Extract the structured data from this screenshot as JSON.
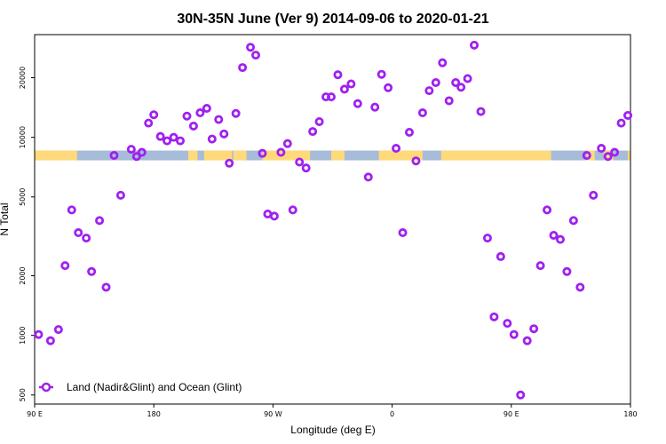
{
  "chart_data": {
    "type": "scatter",
    "title": "30N-35N June (Ver 9)   2014-09-06 to 2020-01-21",
    "xlabel": "Longitude (deg E)",
    "ylabel": "N Total",
    "x_domain": [
      90,
      540
    ],
    "xlim": [
      90,
      540
    ],
    "ylim_log": [
      450,
      33000
    ],
    "x_ticks": [
      {
        "value": 90,
        "label": "90 E"
      },
      {
        "value": 180,
        "label": "180"
      },
      {
        "value": 270,
        "label": "90 W"
      },
      {
        "value": 360,
        "label": "0"
      },
      {
        "value": 450,
        "label": "90 E"
      },
      {
        "value": 540,
        "label": "180"
      }
    ],
    "y_ticks": [
      {
        "value": 500,
        "label": "500"
      },
      {
        "value": 1000,
        "label": "1000"
      },
      {
        "value": 2000,
        "label": "2000"
      },
      {
        "value": 5000,
        "label": "5000"
      },
      {
        "value": 10000,
        "label": "10000"
      },
      {
        "value": 20000,
        "label": "20000"
      }
    ],
    "land_ocean_band": {
      "y_center": 8100,
      "land_color": "#FFD97A",
      "ocean_color": "#A7BCD9",
      "land_segments": [
        [
          90,
          122
        ],
        [
          206,
          213
        ],
        [
          218,
          239
        ],
        [
          240,
          250
        ],
        [
          262,
          298
        ],
        [
          314,
          324
        ],
        [
          350,
          383
        ],
        [
          397,
          480
        ],
        [
          507,
          513
        ],
        [
          520,
          527
        ],
        [
          538,
          540
        ]
      ]
    },
    "series": [
      {
        "name": "Land (Nadir&Glint) and Ocean (Glint)",
        "color": "#A020F0",
        "marker": "open-circle",
        "points": [
          [
            93,
            1010
          ],
          [
            102,
            940
          ],
          [
            108,
            1070
          ],
          [
            113,
            2250
          ],
          [
            118,
            4300
          ],
          [
            123,
            3300
          ],
          [
            129,
            3100
          ],
          [
            133,
            2100
          ],
          [
            139,
            3800
          ],
          [
            144,
            1750
          ],
          [
            150,
            8100
          ],
          [
            155,
            5100
          ],
          [
            163,
            8700
          ],
          [
            167,
            8000
          ],
          [
            171,
            8400
          ],
          [
            176,
            11800
          ],
          [
            180,
            13000
          ],
          [
            185,
            10100
          ],
          [
            190,
            9600
          ],
          [
            195,
            10000
          ],
          [
            200,
            9600
          ],
          [
            205,
            12800
          ],
          [
            210,
            11400
          ],
          [
            215,
            13300
          ],
          [
            220,
            14000
          ],
          [
            224,
            9800
          ],
          [
            229,
            12300
          ],
          [
            233,
            10400
          ],
          [
            237,
            7400
          ],
          [
            242,
            13200
          ],
          [
            247,
            22500
          ],
          [
            253,
            28500
          ],
          [
            257,
            26000
          ],
          [
            262,
            8300
          ],
          [
            266,
            4100
          ],
          [
            271,
            4000
          ],
          [
            276,
            8400
          ],
          [
            281,
            9300
          ],
          [
            285,
            4300
          ],
          [
            290,
            7500
          ],
          [
            295,
            7000
          ],
          [
            300,
            10700
          ],
          [
            305,
            12000
          ],
          [
            310,
            16000
          ],
          [
            314,
            16000
          ],
          [
            319,
            20700
          ],
          [
            324,
            17500
          ],
          [
            329,
            18600
          ],
          [
            334,
            14800
          ],
          [
            342,
            6300
          ],
          [
            347,
            14200
          ],
          [
            352,
            20800
          ],
          [
            357,
            17800
          ],
          [
            363,
            8800
          ],
          [
            368,
            3300
          ],
          [
            373,
            10600
          ],
          [
            378,
            7600
          ],
          [
            383,
            13300
          ],
          [
            388,
            17200
          ],
          [
            393,
            18900
          ],
          [
            398,
            23800
          ],
          [
            403,
            15300
          ],
          [
            408,
            18900
          ],
          [
            412,
            17900
          ],
          [
            417,
            19800
          ],
          [
            422,
            29200
          ],
          [
            427,
            13500
          ],
          [
            432,
            3100
          ],
          [
            437,
            1240
          ],
          [
            442,
            2500
          ],
          [
            447,
            1150
          ],
          [
            452,
            1010
          ],
          [
            457,
            500
          ],
          [
            462,
            940
          ],
          [
            467,
            1080
          ],
          [
            472,
            2250
          ],
          [
            477,
            4300
          ],
          [
            482,
            3200
          ],
          [
            487,
            3050
          ],
          [
            492,
            2100
          ],
          [
            497,
            3800
          ],
          [
            502,
            1750
          ],
          [
            507,
            8100
          ],
          [
            512,
            5100
          ],
          [
            518,
            8800
          ],
          [
            523,
            8000
          ],
          [
            528,
            8400
          ],
          [
            533,
            11800
          ],
          [
            538,
            12900
          ]
        ]
      }
    ]
  }
}
